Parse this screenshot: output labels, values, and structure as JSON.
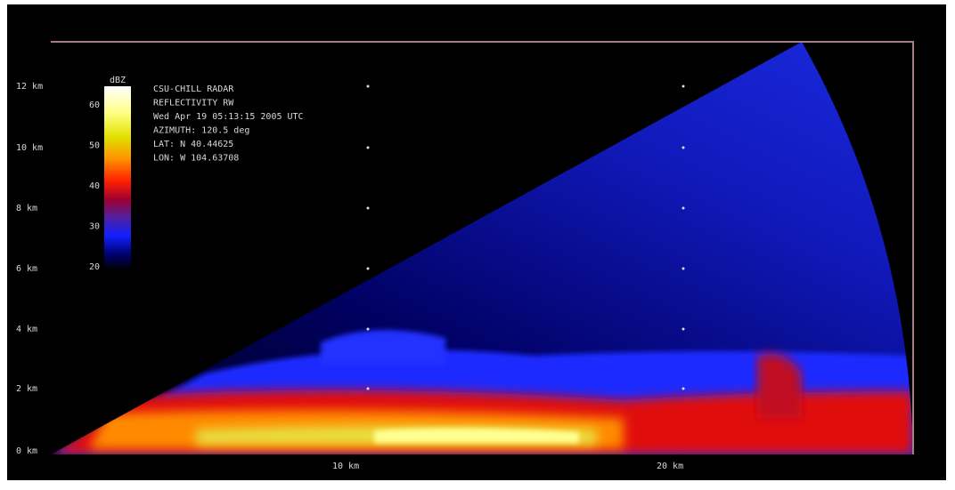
{
  "plot": {
    "info_lines": [
      "CSU-CHILL RADAR",
      "REFLECTIVITY RW",
      "Wed Apr 19 05:13:15 2005 UTC",
      "AZIMUTH: 120.5 deg",
      "LAT: N 40.44625",
      "LON: W 104.63708"
    ],
    "y_axis": {
      "labels": [
        "12 km",
        "10 km",
        "8 km",
        "6 km",
        "4 km",
        "2 km",
        "0 km"
      ]
    },
    "x_axis": {
      "labels": [
        "10 km",
        "20 km"
      ]
    },
    "colorbar": {
      "unit": "dBZ",
      "labels": [
        "60",
        "50",
        "40",
        "30",
        "20"
      ]
    }
  }
}
